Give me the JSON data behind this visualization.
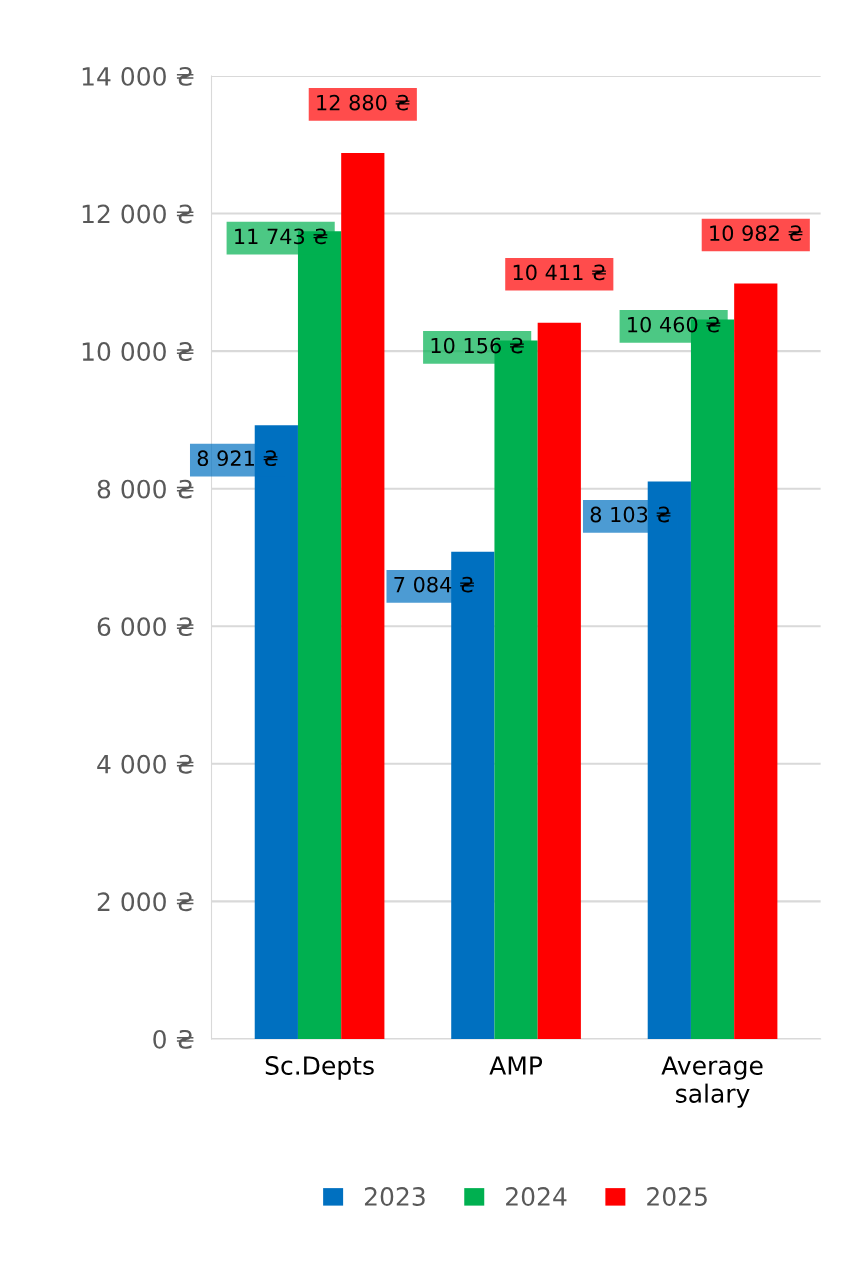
{
  "chart_data": {
    "type": "bar",
    "categories": [
      "Sc.Depts",
      "AMP",
      "Average salary"
    ],
    "series": [
      {
        "name": "2023",
        "color": "#0070c0",
        "values": [
          8921,
          7084,
          8103
        ],
        "value_labels": [
          "8 921 ₴",
          "7 084 ₴",
          "8 103 ₴"
        ]
      },
      {
        "name": "2024",
        "color": "#00b050",
        "values": [
          11743,
          10156,
          10460
        ],
        "value_labels": [
          "11 743 ₴",
          "10 156 ₴",
          "10 460 ₴"
        ]
      },
      {
        "name": "2025",
        "color": "#ff0000",
        "values": [
          12880,
          10411,
          10982
        ],
        "value_labels": [
          "12 880 ₴",
          "10 411 ₴",
          "10 982 ₴"
        ]
      }
    ],
    "ylim": [
      0,
      14000
    ],
    "yticks": [
      {
        "value": 0,
        "label": "0 ₴"
      },
      {
        "value": 2000,
        "label": "2 000 ₴"
      },
      {
        "value": 4000,
        "label": "4 000 ₴"
      },
      {
        "value": 6000,
        "label": "6 000 ₴"
      },
      {
        "value": 8000,
        "label": "8 000 ₴"
      },
      {
        "value": 10000,
        "label": "10 000 ₴"
      },
      {
        "value": 12000,
        "label": "12 000 ₴"
      },
      {
        "value": 14000,
        "label": "14 000 ₴"
      }
    ],
    "grid": "y",
    "legend": "bottom"
  }
}
